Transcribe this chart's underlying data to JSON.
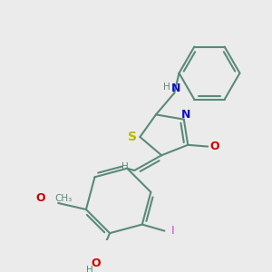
{
  "background_color": "#ebebeb",
  "bond_color": "#5a8a7a",
  "bond_width": 1.5,
  "atom_colors": {
    "S": "#b8b800",
    "N": "#1010cc",
    "O": "#cc0000",
    "I": "#cc44cc",
    "H": "#5a8a7a",
    "C": "#5a8a7a"
  },
  "figsize": [
    3.0,
    3.0
  ],
  "dpi": 100
}
